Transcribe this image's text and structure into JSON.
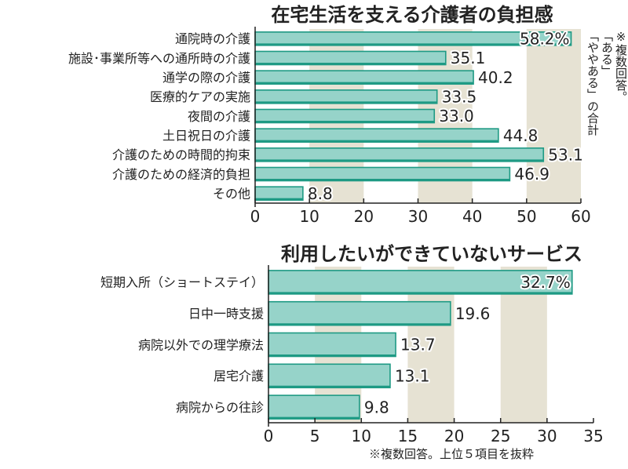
{
  "colors": {
    "bar": "#96d3c9",
    "bar_edge": "#1e9a84",
    "band": "#e6e2d3",
    "text": "#222222"
  },
  "notes": {
    "top_note": [
      "※複数回答。",
      "「ある」",
      "「ややある」の合計"
    ],
    "bottom_note": "※複数回答。上位５項目を抜粋"
  },
  "chart_data": [
    {
      "type": "bar",
      "orientation": "horizontal",
      "title": "在宅生活を支える介護者の負担感",
      "categories": [
        "通院時の介護",
        "施設･事業所等への通所時の介護",
        "通学の際の介護",
        "医療的ケアの実施",
        "夜間の介護",
        "土日祝日の介護",
        "介護のための時間的拘束",
        "介護のための経済的負担",
        "その他"
      ],
      "values": [
        58.2,
        35.1,
        40.2,
        33.5,
        33.0,
        44.8,
        53.1,
        46.9,
        8.8
      ],
      "value_labels": [
        "58.2%",
        "35.1",
        "40.2",
        "33.5",
        "33.0",
        "44.8",
        "53.1",
        "46.9",
        "8.8"
      ],
      "xlim": [
        0,
        60
      ],
      "xticks": [
        0,
        10,
        20,
        30,
        40,
        50,
        60
      ],
      "xtick_labels": [
        "0",
        "10",
        "20",
        "30",
        "40",
        "50",
        "60"
      ],
      "shaded_bands": [
        [
          10,
          20
        ],
        [
          30,
          40
        ],
        [
          50,
          60
        ]
      ]
    },
    {
      "type": "bar",
      "orientation": "horizontal",
      "title": "利用したいができていないサービス",
      "categories": [
        "短期入所（ショートステイ）",
        "日中一時支援",
        "病院以外での理学療法",
        "居宅介護",
        "病院からの往診"
      ],
      "values": [
        32.7,
        19.6,
        13.7,
        13.1,
        9.8
      ],
      "value_labels": [
        "32.7%",
        "19.6",
        "13.7",
        "13.1",
        "9.8"
      ],
      "xlim": [
        0,
        35
      ],
      "xticks": [
        0,
        5,
        10,
        15,
        20,
        25,
        30,
        35
      ],
      "xtick_labels": [
        "0",
        "5",
        "10",
        "15",
        "20",
        "25",
        "30",
        "35"
      ],
      "shaded_bands": [
        [
          5,
          10
        ],
        [
          15,
          20
        ],
        [
          25,
          30
        ]
      ]
    }
  ]
}
